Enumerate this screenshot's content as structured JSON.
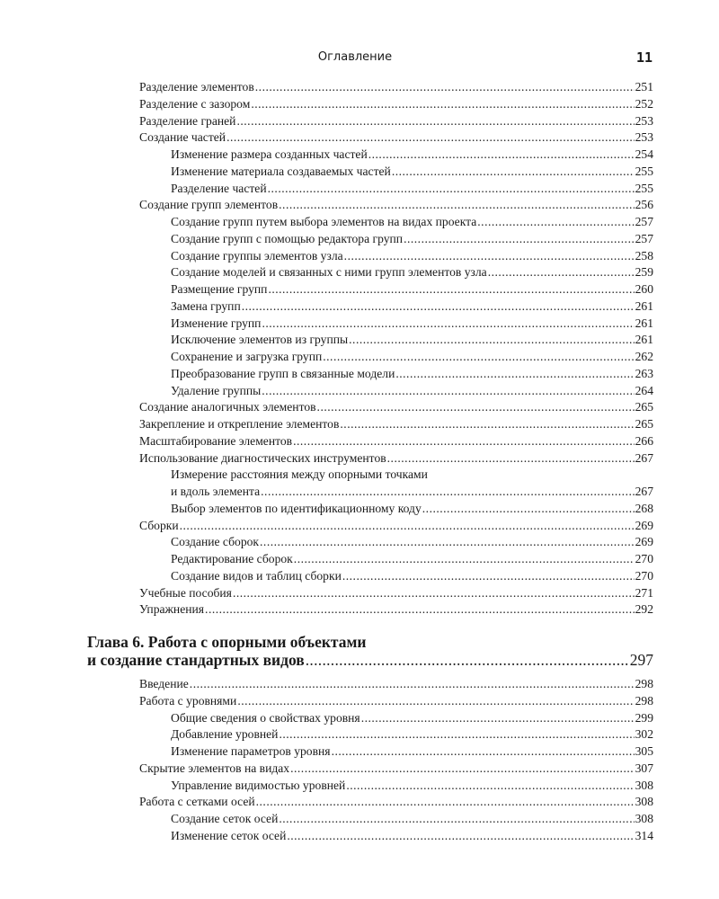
{
  "header": {
    "title": "Оглавление",
    "page_number": "11"
  },
  "block1": [
    {
      "level": 0,
      "title": "Разделение элементов",
      "page": "251"
    },
    {
      "level": 0,
      "title": "Разделение с зазором",
      "page": "252"
    },
    {
      "level": 0,
      "title": "Разделение граней",
      "page": "253"
    },
    {
      "level": 0,
      "title": "Создание частей",
      "page": "253"
    },
    {
      "level": 1,
      "title": "Изменение размера созданных частей",
      "page": "254"
    },
    {
      "level": 1,
      "title": "Изменение материала создаваемых частей",
      "page": "255"
    },
    {
      "level": 1,
      "title": "Разделение частей",
      "page": "255"
    },
    {
      "level": 0,
      "title": "Создание групп элементов",
      "page": "256"
    },
    {
      "level": 1,
      "title": "Создание групп путем выбора элементов на видах проекта",
      "page": "257"
    },
    {
      "level": 1,
      "title": "Создание групп с помощью редактора групп",
      "page": "257"
    },
    {
      "level": 1,
      "title": "Создание группы элементов узла",
      "page": "258"
    },
    {
      "level": 1,
      "title": "Создание моделей и связанных с ними групп элементов узла",
      "page": "259"
    },
    {
      "level": 1,
      "title": "Размещение групп",
      "page": "260"
    },
    {
      "level": 1,
      "title": "Замена групп",
      "page": "261"
    },
    {
      "level": 1,
      "title": "Изменение групп",
      "page": "261"
    },
    {
      "level": 1,
      "title": "Исключение элементов из группы",
      "page": "261"
    },
    {
      "level": 1,
      "title": "Сохранение и загрузка групп",
      "page": "262"
    },
    {
      "level": 1,
      "title": "Преобразование групп в связанные модели",
      "page": "263"
    },
    {
      "level": 1,
      "title": "Удаление группы",
      "page": "264"
    },
    {
      "level": 0,
      "title": "Создание аналогичных элементов",
      "page": "265"
    },
    {
      "level": 0,
      "title": "Закрепление и открепление элементов",
      "page": "265"
    },
    {
      "level": 0,
      "title": "Масштабирование элементов",
      "page": "266"
    },
    {
      "level": 0,
      "title": "Использование диагностических инструментов",
      "page": "267"
    },
    {
      "level": 1,
      "title": "Измерение расстояния между опорными точками",
      "title_cont": "и вдоль элемента",
      "page": "267"
    },
    {
      "level": 1,
      "title": "Выбор элементов по идентификационному коду",
      "page": "268"
    },
    {
      "level": 0,
      "title": "Сборки",
      "page": "269"
    },
    {
      "level": 1,
      "title": "Создание сборок",
      "page": "269"
    },
    {
      "level": 1,
      "title": "Редактирование сборок",
      "page": "270"
    },
    {
      "level": 1,
      "title": "Создание видов и таблиц сборки",
      "page": "270"
    },
    {
      "level": 0,
      "title": "Учебные пособия",
      "page": "271"
    },
    {
      "level": 0,
      "title": "Упражнения",
      "page": "292"
    }
  ],
  "chapter": {
    "line1": "Глава 6. Работа с опорными объектами",
    "line2": "и создание стандартных видов",
    "page": "297"
  },
  "block2": [
    {
      "level": 0,
      "title": "Введение",
      "page": "298"
    },
    {
      "level": 0,
      "title": "Работа с уровнями",
      "page": "298"
    },
    {
      "level": 1,
      "title": "Общие сведения о свойствах уровня",
      "page": "299"
    },
    {
      "level": 1,
      "title": "Добавление уровней",
      "page": "302"
    },
    {
      "level": 1,
      "title": "Изменение параметров уровня",
      "page": "305"
    },
    {
      "level": 0,
      "title": "Скрытие элементов на видах",
      "page": "307"
    },
    {
      "level": 1,
      "title": "Управление видимостью уровней",
      "page": "308"
    },
    {
      "level": 0,
      "title": "Работа с сетками осей",
      "page": "308"
    },
    {
      "level": 1,
      "title": "Создание сеток осей",
      "page": "308"
    },
    {
      "level": 1,
      "title": "Изменение сеток осей",
      "page": "314"
    }
  ]
}
